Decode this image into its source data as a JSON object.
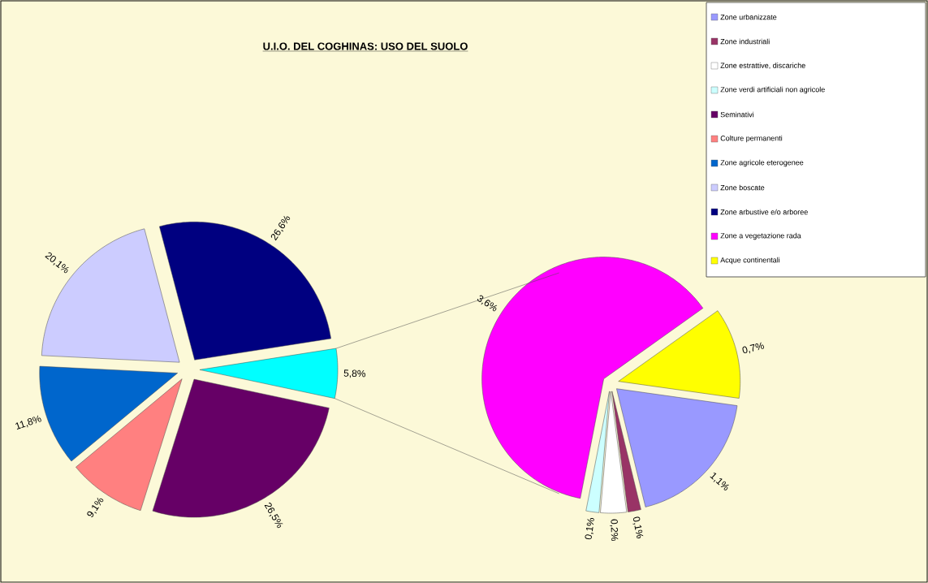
{
  "chart_data": [
    {
      "type": "pie",
      "title": "U.I.O. DEL COGHINAS: USO DEL SUOLO",
      "legend": "top right",
      "categories": [
        "Seminativi",
        "Colture permanenti",
        "Zone agricole eterogenee",
        "Zone boscate",
        "Zone arbustive e/o arboree",
        null
      ],
      "values": [
        26.5,
        9.1,
        11.8,
        20.1,
        26.6,
        5.8
      ],
      "colors": [
        "#660066",
        "#ff8080",
        "#0066cc",
        "#ccccff",
        "#000080",
        "#00ffff"
      ],
      "value_labels": [
        "26,5%",
        "9,1%",
        "11,8%",
        "20,1%",
        "26,6%",
        "5,8%"
      ]
    },
    {
      "type": "pie",
      "legend": "top right",
      "categories": [
        "Zone urbanizzate",
        "Zone industriali",
        "Zone estrattive, discariche",
        "Zone verdi artificiali non agricole",
        "Zone a vegetazione rada",
        "Acque continentali"
      ],
      "values": [
        1.1,
        0.1,
        0.2,
        0.1,
        3.6,
        0.7
      ],
      "colors": [
        "#9999ff",
        "#993366",
        "#ffffff",
        "#ccffff",
        "#ff00ff",
        "#ffff00"
      ],
      "value_labels": [
        "1,1%",
        "0,1%",
        "0,2%",
        "0,1%",
        "3,6%",
        "0,7%"
      ]
    }
  ]
}
